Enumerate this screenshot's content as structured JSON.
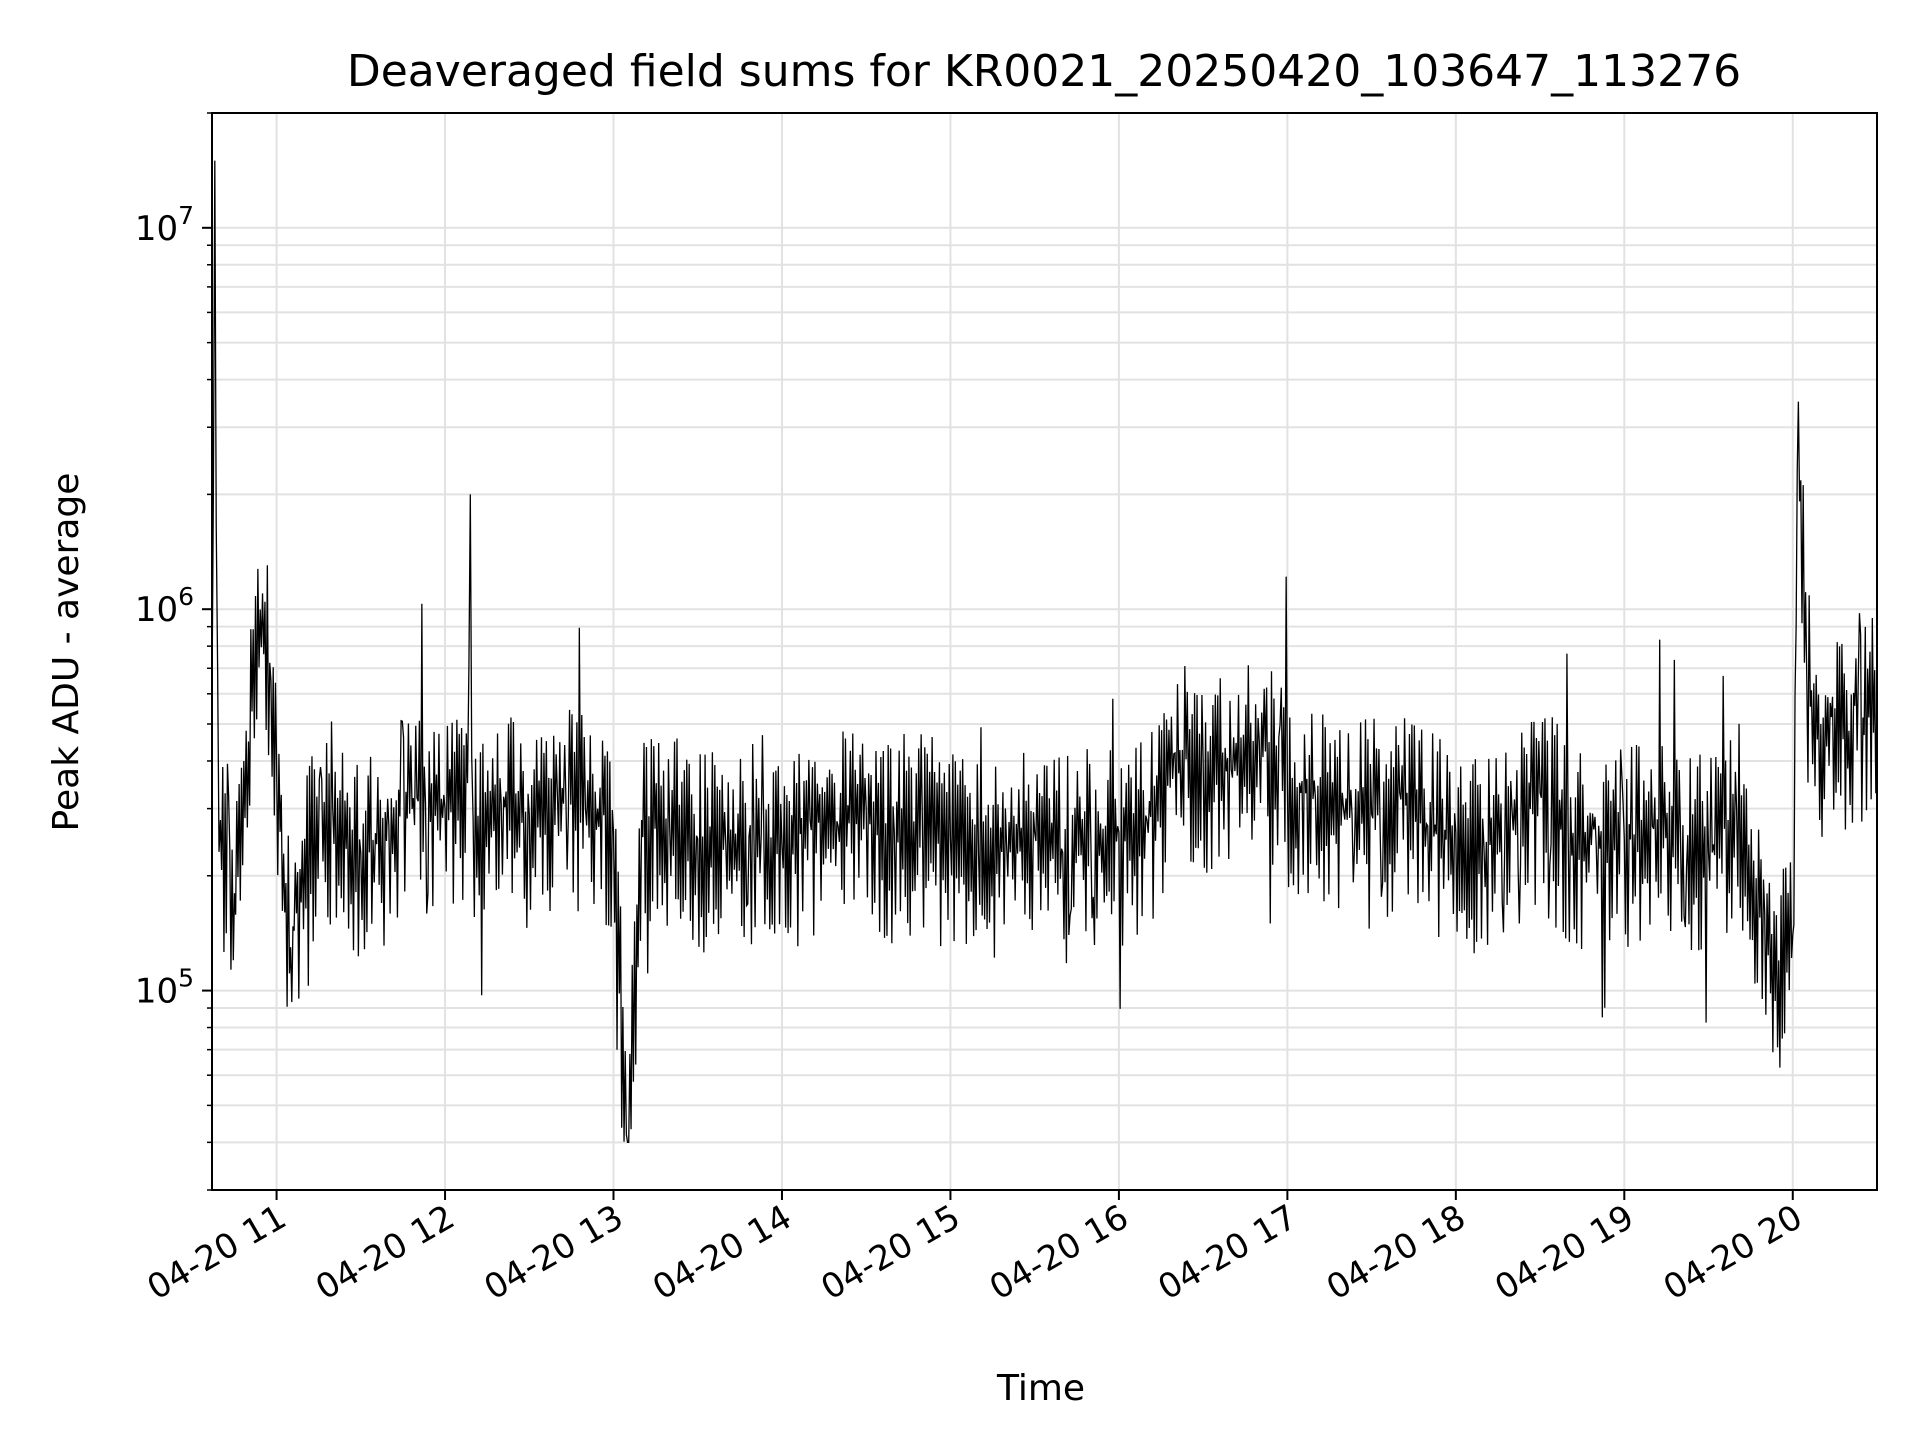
{
  "chart_data": {
    "type": "line",
    "title": "Deaveraged field sums for KR0021_20250420_103647_113276",
    "xlabel": "Time",
    "ylabel": "Peak ADU - average",
    "yscale": "log",
    "ylim": [
      30000,
      20000000
    ],
    "xlim": [
      "2025-04-20 10:37",
      "2025-04-20 20:30"
    ],
    "grid": true,
    "line_color": "#000000",
    "x_ticks": [
      {
        "value": "2025-04-20 11:00",
        "label": "04-20 11"
      },
      {
        "value": "2025-04-20 12:00",
        "label": "04-20 12"
      },
      {
        "value": "2025-04-20 13:00",
        "label": "04-20 13"
      },
      {
        "value": "2025-04-20 14:00",
        "label": "04-20 14"
      },
      {
        "value": "2025-04-20 15:00",
        "label": "04-20 15"
      },
      {
        "value": "2025-04-20 16:00",
        "label": "04-20 16"
      },
      {
        "value": "2025-04-20 17:00",
        "label": "04-20 17"
      },
      {
        "value": "2025-04-20 18:00",
        "label": "04-20 18"
      },
      {
        "value": "2025-04-20 19:00",
        "label": "04-20 19"
      },
      {
        "value": "2025-04-20 20:00",
        "label": "04-20 20"
      }
    ],
    "y_ticks": [
      {
        "value": 100000,
        "base": "10",
        "exp": "5"
      },
      {
        "value": 1000000,
        "base": "10",
        "exp": "6"
      },
      {
        "value": 10000000,
        "base": "10",
        "exp": "7"
      }
    ],
    "series": [
      {
        "x": [
          "2025-04-20 10:37",
          "2025-04-20 10:38",
          "2025-04-20 10:39",
          "2025-04-20 10:40",
          "2025-04-20 10:45",
          "2025-04-20 10:50",
          "2025-04-20 10:55",
          "2025-04-20 10:58",
          "2025-04-20 11:00",
          "2025-04-20 11:05",
          "2025-04-20 11:10",
          "2025-04-20 11:20",
          "2025-04-20 11:30",
          "2025-04-20 11:40",
          "2025-04-20 11:50",
          "2025-04-20 12:00",
          "2025-04-20 12:08",
          "2025-04-20 12:09",
          "2025-04-20 12:10",
          "2025-04-20 12:20",
          "2025-04-20 12:30",
          "2025-04-20 12:40",
          "2025-04-20 12:50",
          "2025-04-20 13:00",
          "2025-04-20 13:05",
          "2025-04-20 13:10",
          "2025-04-20 13:20",
          "2025-04-20 13:30",
          "2025-04-20 13:40",
          "2025-04-20 13:50",
          "2025-04-20 14:00",
          "2025-04-20 14:10",
          "2025-04-20 14:20",
          "2025-04-20 14:30",
          "2025-04-20 14:40",
          "2025-04-20 14:50",
          "2025-04-20 15:00",
          "2025-04-20 15:10",
          "2025-04-20 15:20",
          "2025-04-20 15:30",
          "2025-04-20 15:40",
          "2025-04-20 15:50",
          "2025-04-20 16:00",
          "2025-04-20 16:10",
          "2025-04-20 16:20",
          "2025-04-20 16:30",
          "2025-04-20 16:40",
          "2025-04-20 16:50",
          "2025-04-20 17:00",
          "2025-04-20 17:10",
          "2025-04-20 17:20",
          "2025-04-20 17:30",
          "2025-04-20 17:40",
          "2025-04-20 17:50",
          "2025-04-20 18:00",
          "2025-04-20 18:10",
          "2025-04-20 18:20",
          "2025-04-20 18:30",
          "2025-04-20 18:40",
          "2025-04-20 18:50",
          "2025-04-20 19:00",
          "2025-04-20 19:10",
          "2025-04-20 19:20",
          "2025-04-20 19:30",
          "2025-04-20 19:40",
          "2025-04-20 19:50",
          "2025-04-20 19:55",
          "2025-04-20 20:00",
          "2025-04-20 20:02",
          "2025-04-20 20:05",
          "2025-04-20 20:10",
          "2025-04-20 20:15",
          "2025-04-20 20:20",
          "2025-04-20 20:25",
          "2025-04-20 20:30"
        ],
        "y": [
          600000,
          15000000,
          700000,
          280000,
          180000,
          450000,
          1100000,
          650000,
          400000,
          130000,
          250000,
          300000,
          230000,
          270000,
          320000,
          300000,
          350000,
          2000000,
          280000,
          310000,
          290000,
          330000,
          300000,
          260000,
          40000,
          280000,
          270000,
          250000,
          240000,
          260000,
          240000,
          280000,
          270000,
          300000,
          260000,
          280000,
          250000,
          230000,
          240000,
          260000,
          230000,
          250000,
          260000,
          280000,
          420000,
          400000,
          380000,
          450000,
          350000,
          320000,
          300000,
          290000,
          330000,
          270000,
          260000,
          240000,
          300000,
          330000,
          260000,
          240000,
          250000,
          270000,
          260000,
          230000,
          300000,
          160000,
          120000,
          140000,
          3500000,
          650000,
          500000,
          550000,
          480000,
          520000,
          600000
        ]
      }
    ]
  }
}
